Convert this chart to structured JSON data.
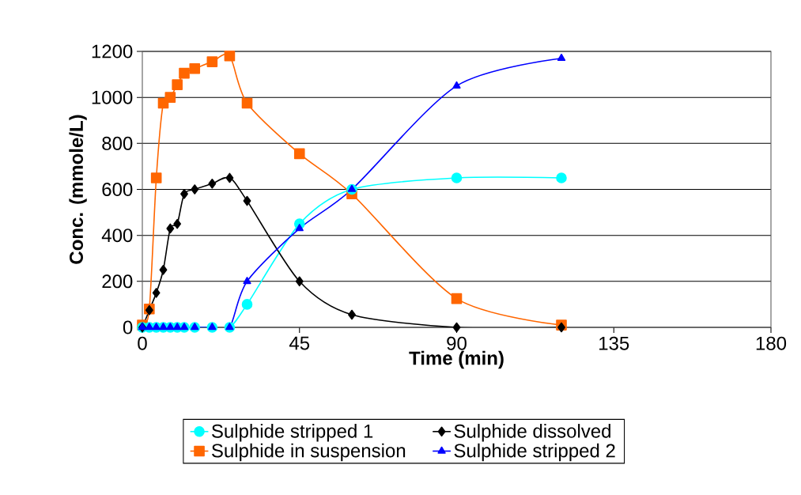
{
  "chart_data": {
    "type": "line",
    "xlabel": "Time (min)",
    "ylabel": "Conc. (mmole/L)",
    "x": [
      0,
      2,
      4,
      6,
      8,
      10,
      12,
      15,
      20,
      25,
      30,
      45,
      60,
      90,
      120
    ],
    "series": [
      {
        "name": "Sulphide stripped 1",
        "color": "#00ffff",
        "marker": "circle",
        "values": [
          0,
          0,
          0,
          0,
          0,
          0,
          0,
          0,
          0,
          0,
          100,
          450,
          600,
          650,
          650
        ]
      },
      {
        "name": "Sulphide dissolved",
        "color": "#000000",
        "marker": "diamond",
        "values": [
          0,
          75,
          150,
          250,
          430,
          450,
          580,
          600,
          625,
          650,
          550,
          200,
          55,
          0,
          0
        ]
      },
      {
        "name": "Sulphide in suspension",
        "color": "#ff6600",
        "marker": "square",
        "values": [
          10,
          80,
          650,
          975,
          1000,
          1055,
          1105,
          1125,
          1155,
          1180,
          975,
          755,
          580,
          125,
          10
        ]
      },
      {
        "name": "Sulphide stripped 2",
        "color": "#0000ff",
        "marker": "triangle",
        "values": [
          0,
          0,
          0,
          0,
          0,
          0,
          0,
          0,
          0,
          0,
          200,
          430,
          600,
          1050,
          1170
        ]
      }
    ],
    "xlim": [
      0,
      180
    ],
    "ylim": [
      0,
      1200
    ],
    "xticks": [
      0,
      45,
      90,
      135,
      180
    ],
    "yticks": [
      0,
      200,
      400,
      600,
      800,
      1000,
      1200
    ],
    "grid": "y",
    "legend": "bottom"
  }
}
